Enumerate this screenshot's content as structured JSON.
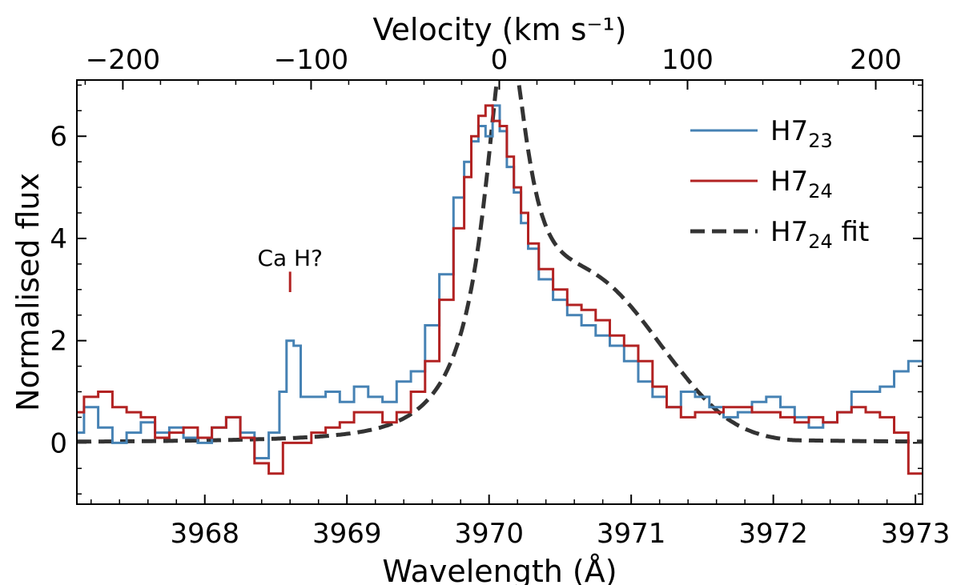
{
  "chart_data": {
    "type": "line",
    "title": "",
    "xlabel": "Wavelength (Å)",
    "ylabel": "Normalised flux",
    "top_xlabel": "Velocity (km s⁻¹)",
    "xlim": [
      3967.1,
      3973.05
    ],
    "ylim": [
      -1.2,
      7.1
    ],
    "x_ticks": [
      3968,
      3969,
      3970,
      3971,
      3972,
      3973
    ],
    "x_tick_labels": [
      "3968",
      "3969",
      "3970",
      "3971",
      "3972",
      "3973"
    ],
    "y_ticks": [
      0,
      2,
      4,
      6
    ],
    "y_tick_labels": [
      "0",
      "2",
      "4",
      "6"
    ],
    "top_ticks": [
      -200,
      -100,
      0,
      100,
      200
    ],
    "top_tick_labels": [
      "−200",
      "−100",
      "0",
      "100",
      "200"
    ],
    "rest_wavelength": 3970.072,
    "legend_position": "top-right",
    "annotation": {
      "text": "Ca H?",
      "x": 3968.6,
      "y_from": 2.95,
      "y_to": 3.35,
      "color": "#b22222"
    },
    "series": [
      {
        "name": "H7",
        "subscript": "23",
        "color": "#4682b4",
        "style": "steps",
        "x": [
          3967.1,
          3967.2,
          3967.3,
          3967.4,
          3967.5,
          3967.6,
          3967.7,
          3967.8,
          3967.9,
          3968.0,
          3968.1,
          3968.2,
          3968.3,
          3968.4,
          3968.5,
          3968.55,
          3968.6,
          3968.65,
          3968.7,
          3968.8,
          3968.9,
          3969.0,
          3969.1,
          3969.2,
          3969.3,
          3969.4,
          3969.5,
          3969.6,
          3969.7,
          3969.8,
          3969.85,
          3969.9,
          3969.95,
          3970.0,
          3970.05,
          3970.1,
          3970.15,
          3970.2,
          3970.25,
          3970.3,
          3970.4,
          3970.5,
          3970.6,
          3970.7,
          3970.8,
          3970.9,
          3971.0,
          3971.1,
          3971.2,
          3971.3,
          3971.4,
          3971.5,
          3971.6,
          3971.7,
          3971.8,
          3971.9,
          3972.0,
          3972.1,
          3972.2,
          3972.3,
          3972.4,
          3972.5,
          3972.6,
          3972.7,
          3972.8,
          3972.9,
          3973.0
        ],
        "y": [
          0.2,
          0.7,
          0.3,
          0.0,
          0.2,
          0.4,
          0.2,
          0.3,
          0.1,
          0.0,
          0.3,
          0.5,
          0.2,
          -0.3,
          0.2,
          1.0,
          2.0,
          1.9,
          0.9,
          0.9,
          1.0,
          0.8,
          1.1,
          0.9,
          0.8,
          1.2,
          1.4,
          2.3,
          3.3,
          4.8,
          5.5,
          5.9,
          6.2,
          6.0,
          6.6,
          6.1,
          5.4,
          4.9,
          4.3,
          3.8,
          3.2,
          2.8,
          2.5,
          2.3,
          2.1,
          1.9,
          1.6,
          1.2,
          0.9,
          0.7,
          1.0,
          0.9,
          0.7,
          0.5,
          0.6,
          0.8,
          0.9,
          0.7,
          0.5,
          0.3,
          0.4,
          0.6,
          1.0,
          1.0,
          1.1,
          1.4,
          1.6
        ]
      },
      {
        "name": "H7",
        "subscript": "24",
        "color": "#b22222",
        "style": "steps",
        "x": [
          3967.1,
          3967.2,
          3967.3,
          3967.4,
          3967.5,
          3967.6,
          3967.7,
          3967.8,
          3967.9,
          3968.0,
          3968.1,
          3968.2,
          3968.3,
          3968.4,
          3968.5,
          3968.6,
          3968.7,
          3968.8,
          3968.9,
          3969.0,
          3969.1,
          3969.2,
          3969.3,
          3969.4,
          3969.5,
          3969.6,
          3969.7,
          3969.8,
          3969.85,
          3969.9,
          3969.95,
          3970.0,
          3970.05,
          3970.1,
          3970.15,
          3970.2,
          3970.25,
          3970.3,
          3970.4,
          3970.5,
          3970.6,
          3970.7,
          3970.8,
          3970.9,
          3971.0,
          3971.1,
          3971.2,
          3971.3,
          3971.4,
          3971.5,
          3971.6,
          3971.7,
          3971.8,
          3971.9,
          3972.0,
          3972.1,
          3972.2,
          3972.3,
          3972.4,
          3972.5,
          3972.6,
          3972.7,
          3972.8,
          3972.9,
          3973.0
        ],
        "y": [
          0.6,
          0.9,
          1.0,
          0.7,
          0.6,
          0.5,
          0.1,
          0.2,
          0.3,
          0.1,
          0.3,
          0.5,
          0.1,
          -0.4,
          -0.6,
          0.0,
          0.0,
          0.2,
          0.3,
          0.4,
          0.6,
          0.6,
          0.4,
          0.6,
          1.0,
          1.6,
          2.8,
          4.2,
          5.2,
          6.0,
          6.4,
          6.6,
          6.3,
          6.2,
          5.6,
          5.0,
          4.5,
          3.9,
          3.4,
          3.0,
          2.7,
          2.6,
          2.4,
          2.1,
          1.9,
          1.6,
          1.1,
          0.7,
          0.5,
          0.6,
          0.6,
          0.7,
          0.7,
          0.6,
          0.6,
          0.5,
          0.4,
          0.5,
          0.4,
          0.6,
          0.7,
          0.6,
          0.5,
          0.2,
          -0.6
        ]
      },
      {
        "name": "H7",
        "subscript": "24",
        "suffix": " fit",
        "color": "#333333",
        "style": "dashed",
        "model": {
          "amplitude": 6.7,
          "center": 3970.12,
          "core_width": 0.18,
          "wing_amplitude": 2.8,
          "wing_center": 3970.72,
          "wing_sigma": 0.5
        }
      }
    ]
  }
}
